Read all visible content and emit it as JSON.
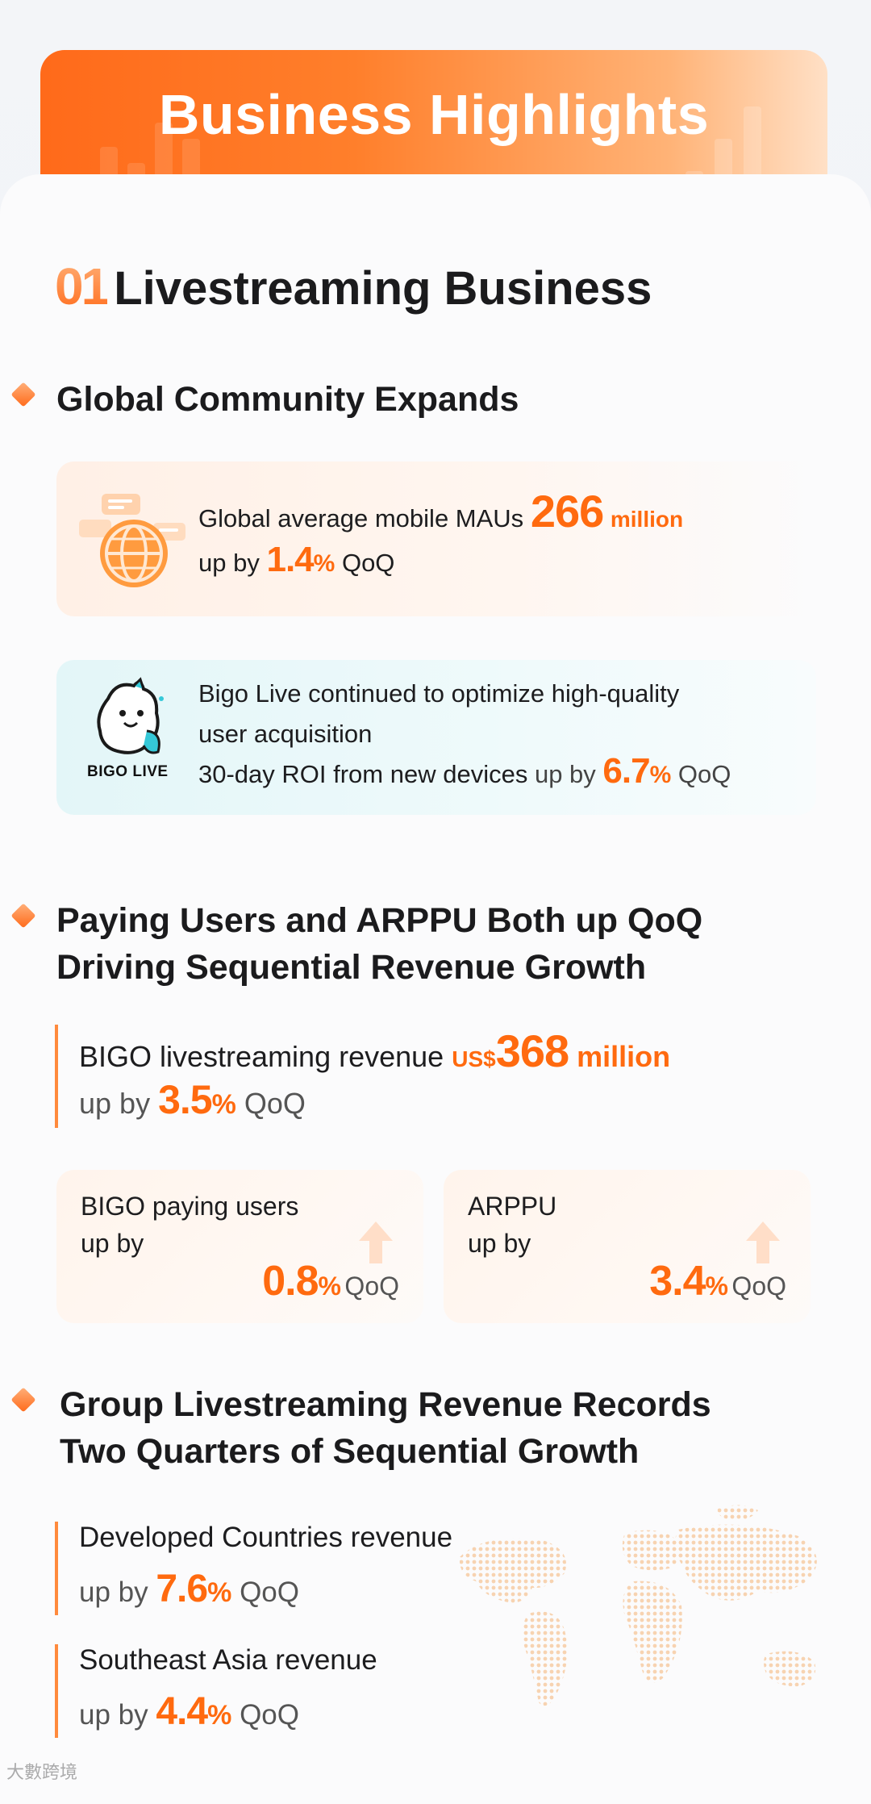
{
  "banner": {
    "title": "Business Highlights"
  },
  "section": {
    "number": "01",
    "title": "Livestreaming Business"
  },
  "subsections": {
    "community": {
      "title": "Global Community Expands"
    },
    "paying": {
      "title_line1": "Paying Users and ARPPU Both up QoQ",
      "title_line2": "Driving Sequential Revenue Growth"
    },
    "group": {
      "title_line1": "Group Livestreaming Revenue Records",
      "title_line2": "Two Quarters of Sequential Growth"
    }
  },
  "mau_box": {
    "prefix": "Global average mobile MAUs",
    "value": "266",
    "unit": "million",
    "up_by": "up by",
    "pct": "1.4",
    "pct_sign": "%",
    "qoq": "QoQ"
  },
  "bigo_box": {
    "logo_label": "BIGO LIVE",
    "line1": "Bigo Live continued to optimize high-quality",
    "line2": "user acquisition",
    "line3_prefix": "30-day ROI from new devices",
    "line3_upby": "up by",
    "pct": "6.7",
    "pct_sign": "%",
    "qoq": "QoQ"
  },
  "revenue_stat": {
    "label": "BIGO livestreaming revenue",
    "currency": "US$",
    "value": "368",
    "unit": "million",
    "up_by": "up by",
    "pct": "3.5",
    "pct_sign": "%",
    "qoq": "QoQ"
  },
  "paying_users": {
    "title_line1": "BIGO paying users",
    "title_line2": "up by",
    "value": "0.8",
    "pct_sign": "%",
    "qoq": "QoQ"
  },
  "arppu": {
    "title_line1": "ARPPU",
    "title_line2": "up by",
    "value": "3.4",
    "pct_sign": "%",
    "qoq": "QoQ"
  },
  "developed": {
    "label": "Developed Countries revenue",
    "up_by": "up by",
    "value": "7.6",
    "pct_sign": "%",
    "qoq": "QoQ"
  },
  "sea": {
    "label": "Southeast Asia revenue",
    "up_by": "up by",
    "value": "4.4",
    "pct_sign": "%",
    "qoq": "QoQ"
  },
  "watermark": "大數跨境",
  "colors": {
    "accent": "#ff6a0f",
    "banner_start": "#ff6a1a",
    "banner_end": "#ffe0c6",
    "cyan_box": "#e3f6f8",
    "orange_box": "#fff0e6"
  }
}
